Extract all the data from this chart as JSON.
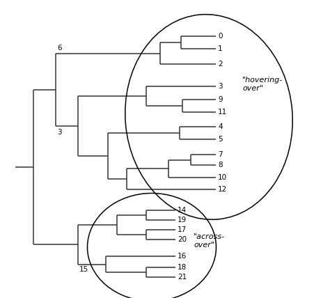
{
  "bg_color": "#ffffff",
  "line_color": "#333333",
  "lw": 1.1,
  "hovering_label": "\"hovering-\nover\"",
  "acrossover_label": "\"across-\nover\"",
  "fs": 7.5
}
